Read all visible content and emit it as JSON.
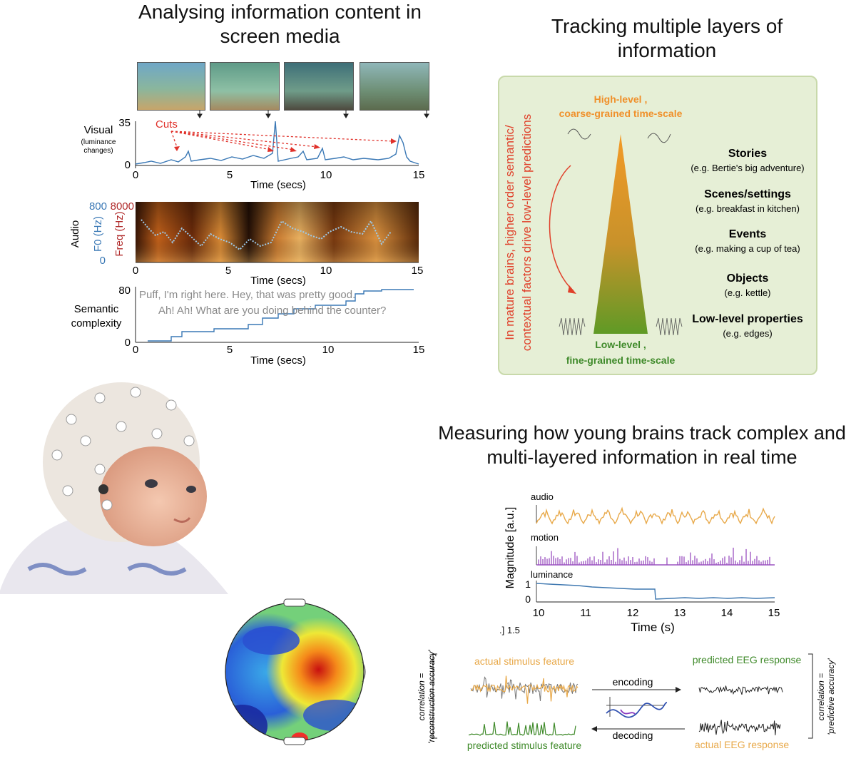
{
  "panel1": {
    "title": "Analysing information content in screen media",
    "visual": {
      "label": "Visual",
      "sublabel": "(luminance changes)",
      "cuts_label": "Cuts",
      "y_top": "35",
      "y_bottom": "0",
      "xticks": [
        "0",
        "5",
        "10",
        "15"
      ],
      "xlabel": "Time (secs)"
    },
    "audio": {
      "label": "Audio",
      "f0_label": "F0 (Hz)",
      "freq_label": "Freq (Hz)",
      "f0_top": "800",
      "freq_top": "8000",
      "y_bottom": "0",
      "xticks": [
        "0",
        "5",
        "10",
        "15"
      ],
      "xlabel": "Time (secs)"
    },
    "semantic": {
      "label_line1": "Semantic",
      "label_line2": "complexity",
      "y_top": "80",
      "y_bottom": "0",
      "quote1": "Puff, I'm right here. Hey, that was pretty good.",
      "quote2": "Ah! Ah! What are you doing behind the counter?",
      "xticks": [
        "0",
        "5",
        "10",
        "15"
      ],
      "xlabel": "Time (secs)"
    }
  },
  "panel2": {
    "title": "Tracking multiple layers of information",
    "side_text_line1": "In mature brains, higher order semantic/",
    "side_text_line2": "contextual factors drive low-level predictions",
    "high_level_line1": "High-level ,",
    "high_level_line2": "coarse-grained time-scale",
    "low_level_line1": "Low-level ,",
    "low_level_line2": "fine-grained time-scale",
    "layers": [
      {
        "name": "Stories",
        "example": "(e.g. Bertie's big adventure)"
      },
      {
        "name": "Scenes/settings",
        "example": "(e.g. breakfast in kitchen)"
      },
      {
        "name": "Events",
        "example": "(e.g. making a cup of tea)"
      },
      {
        "name": "Objects",
        "example": "(e.g. kettle)"
      },
      {
        "name": "Low-level properties",
        "example": "(e.g. edges)"
      }
    ],
    "colors": {
      "high": "#f0902a",
      "low": "#3f8a2a",
      "arrow": "#e0402a"
    }
  },
  "panel3": {
    "title": "Measuring how young brains track complex and multi-layered information in real time",
    "ylabel": "Magnitude [a.u.]",
    "traces": [
      "audio",
      "motion",
      "luminance"
    ],
    "lum_ticks": [
      "1",
      "0"
    ],
    "xticks": [
      "10",
      "11",
      "12",
      "13",
      "14",
      "15"
    ],
    "xlabel": "Time (s)",
    "clip_label": ".] 1.5",
    "colors": {
      "audio": "#e8a94a",
      "motion": "#9a52c0",
      "luminance": "#3f78b0"
    }
  },
  "panel4": {
    "left_bracket_line1": "correlation =",
    "left_bracket_line2": "'reconstruction accuracy'",
    "right_bracket_line1": "correlation =",
    "right_bracket_line2": "'predictive accuracy'",
    "actual_stimulus": "actual stimulus feature",
    "predicted_stimulus": "predicted stimulus feature",
    "predicted_eeg": "predicted EEG response",
    "actual_eeg": "actual EEG response",
    "encoding": "encoding",
    "decoding": "decoding"
  }
}
